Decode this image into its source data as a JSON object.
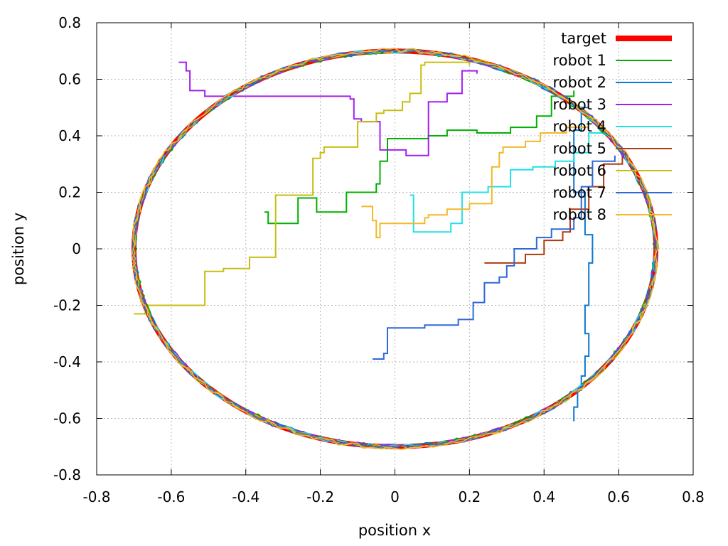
{
  "chart_data": {
    "type": "line",
    "xlabel": "position x",
    "ylabel": "position y",
    "xlim": [
      -0.8,
      0.8
    ],
    "ylim": [
      -0.8,
      0.8
    ],
    "xticks": [
      -0.8,
      -0.6,
      -0.4,
      -0.2,
      0,
      0.2,
      0.4,
      0.6,
      0.8
    ],
    "yticks": [
      -0.8,
      -0.6,
      -0.4,
      -0.2,
      0,
      0.2,
      0.4,
      0.6,
      0.8
    ],
    "xtick_labels": [
      "-0.8",
      "-0.6",
      "-0.4",
      "-0.2",
      "0",
      "0.2",
      "0.4",
      "0.6",
      "0.8"
    ],
    "ytick_labels": [
      "-0.8",
      "-0.6",
      "-0.4",
      "-0.2",
      "0",
      "0.2",
      "0.4",
      "0.6",
      "0.8"
    ],
    "grid": true,
    "legend_position": "top-right",
    "series": [
      {
        "name": "target",
        "color": "#ff0000",
        "kind": "circle",
        "center": [
          0,
          0
        ],
        "radius": 0.7
      },
      {
        "name": "robot 1",
        "color": "#00b000",
        "points": [
          [
            -0.35,
            0.13
          ],
          [
            -0.34,
            0.13
          ],
          [
            -0.34,
            0.09
          ],
          [
            -0.26,
            0.09
          ],
          [
            -0.26,
            0.18
          ],
          [
            -0.21,
            0.18
          ],
          [
            -0.21,
            0.13
          ],
          [
            -0.13,
            0.13
          ],
          [
            -0.13,
            0.2
          ],
          [
            -0.05,
            0.2
          ],
          [
            -0.05,
            0.23
          ],
          [
            -0.04,
            0.23
          ],
          [
            -0.04,
            0.31
          ],
          [
            -0.02,
            0.31
          ],
          [
            -0.02,
            0.39
          ],
          [
            0.09,
            0.39
          ],
          [
            0.09,
            0.4
          ],
          [
            0.14,
            0.4
          ],
          [
            0.14,
            0.42
          ],
          [
            0.22,
            0.42
          ],
          [
            0.22,
            0.41
          ],
          [
            0.31,
            0.41
          ],
          [
            0.31,
            0.43
          ],
          [
            0.38,
            0.43
          ],
          [
            0.38,
            0.47
          ],
          [
            0.42,
            0.47
          ],
          [
            0.42,
            0.54
          ],
          [
            0.48,
            0.54
          ],
          [
            0.48,
            0.56
          ]
        ]
      },
      {
        "name": "robot 2",
        "color": "#0a78d2",
        "points": [
          [
            0.52,
            0.5
          ],
          [
            0.5,
            0.5
          ],
          [
            0.5,
            0.42
          ],
          [
            0.48,
            0.42
          ],
          [
            0.48,
            0.2
          ],
          [
            0.51,
            0.2
          ],
          [
            0.51,
            0.05
          ],
          [
            0.53,
            0.05
          ],
          [
            0.53,
            -0.05
          ],
          [
            0.52,
            -0.05
          ],
          [
            0.52,
            -0.2
          ],
          [
            0.51,
            -0.2
          ],
          [
            0.51,
            -0.3
          ],
          [
            0.52,
            -0.3
          ],
          [
            0.52,
            -0.38
          ],
          [
            0.51,
            -0.38
          ],
          [
            0.51,
            -0.45
          ],
          [
            0.5,
            -0.45
          ],
          [
            0.5,
            -0.5
          ],
          [
            0.49,
            -0.5
          ],
          [
            0.49,
            -0.56
          ],
          [
            0.48,
            -0.56
          ],
          [
            0.48,
            -0.61
          ]
        ]
      },
      {
        "name": "robot 3",
        "color": "#a020f0",
        "points": [
          [
            -0.58,
            0.66
          ],
          [
            -0.56,
            0.66
          ],
          [
            -0.56,
            0.63
          ],
          [
            -0.55,
            0.63
          ],
          [
            -0.55,
            0.56
          ],
          [
            -0.51,
            0.56
          ],
          [
            -0.51,
            0.54
          ],
          [
            -0.12,
            0.54
          ],
          [
            -0.12,
            0.53
          ],
          [
            -0.11,
            0.53
          ],
          [
            -0.11,
            0.46
          ],
          [
            -0.09,
            0.46
          ],
          [
            -0.09,
            0.45
          ],
          [
            -0.04,
            0.45
          ],
          [
            -0.04,
            0.35
          ],
          [
            0.03,
            0.35
          ],
          [
            0.03,
            0.33
          ],
          [
            0.09,
            0.33
          ],
          [
            0.09,
            0.52
          ],
          [
            0.14,
            0.52
          ],
          [
            0.14,
            0.55
          ],
          [
            0.18,
            0.55
          ],
          [
            0.18,
            0.63
          ],
          [
            0.22,
            0.63
          ],
          [
            0.22,
            0.62
          ]
        ]
      },
      {
        "name": "robot 4",
        "color": "#20e0e8",
        "points": [
          [
            0.04,
            0.19
          ],
          [
            0.05,
            0.19
          ],
          [
            0.05,
            0.06
          ],
          [
            0.15,
            0.06
          ],
          [
            0.15,
            0.09
          ],
          [
            0.18,
            0.09
          ],
          [
            0.18,
            0.2
          ],
          [
            0.25,
            0.2
          ],
          [
            0.25,
            0.22
          ],
          [
            0.31,
            0.22
          ],
          [
            0.31,
            0.28
          ],
          [
            0.37,
            0.28
          ],
          [
            0.37,
            0.29
          ],
          [
            0.43,
            0.29
          ],
          [
            0.43,
            0.31
          ],
          [
            0.48,
            0.31
          ],
          [
            0.48,
            0.34
          ],
          [
            0.52,
            0.34
          ],
          [
            0.52,
            0.41
          ],
          [
            0.56,
            0.41
          ],
          [
            0.56,
            0.43
          ]
        ]
      },
      {
        "name": "robot 5",
        "color": "#b03a10",
        "points": [
          [
            0.24,
            -0.05
          ],
          [
            0.35,
            -0.05
          ],
          [
            0.35,
            -0.02
          ],
          [
            0.4,
            -0.02
          ],
          [
            0.4,
            0.03
          ],
          [
            0.45,
            0.03
          ],
          [
            0.45,
            0.06
          ],
          [
            0.47,
            0.06
          ],
          [
            0.47,
            0.14
          ],
          [
            0.52,
            0.14
          ],
          [
            0.52,
            0.22
          ],
          [
            0.56,
            0.22
          ],
          [
            0.56,
            0.3
          ],
          [
            0.61,
            0.3
          ],
          [
            0.61,
            0.33
          ]
        ]
      },
      {
        "name": "robot 6",
        "color": "#c8be10",
        "points": [
          [
            -0.7,
            -0.23
          ],
          [
            -0.67,
            -0.23
          ],
          [
            -0.67,
            -0.2
          ],
          [
            -0.51,
            -0.2
          ],
          [
            -0.51,
            -0.08
          ],
          [
            -0.46,
            -0.08
          ],
          [
            -0.46,
            -0.07
          ],
          [
            -0.39,
            -0.07
          ],
          [
            -0.39,
            -0.03
          ],
          [
            -0.32,
            -0.03
          ],
          [
            -0.32,
            0.19
          ],
          [
            -0.22,
            0.19
          ],
          [
            -0.22,
            0.32
          ],
          [
            -0.2,
            0.32
          ],
          [
            -0.2,
            0.34
          ],
          [
            -0.19,
            0.34
          ],
          [
            -0.19,
            0.36
          ],
          [
            -0.1,
            0.36
          ],
          [
            -0.1,
            0.45
          ],
          [
            -0.05,
            0.45
          ],
          [
            -0.05,
            0.48
          ],
          [
            -0.03,
            0.48
          ],
          [
            -0.03,
            0.49
          ],
          [
            0.02,
            0.49
          ],
          [
            0.02,
            0.52
          ],
          [
            0.04,
            0.52
          ],
          [
            0.04,
            0.55
          ],
          [
            0.07,
            0.55
          ],
          [
            0.07,
            0.65
          ],
          [
            0.08,
            0.65
          ],
          [
            0.08,
            0.66
          ],
          [
            0.2,
            0.66
          ],
          [
            0.2,
            0.65
          ]
        ]
      },
      {
        "name": "robot 7",
        "color": "#2f68d8",
        "points": [
          [
            -0.06,
            -0.39
          ],
          [
            -0.03,
            -0.39
          ],
          [
            -0.03,
            -0.37
          ],
          [
            -0.02,
            -0.37
          ],
          [
            -0.02,
            -0.28
          ],
          [
            0.08,
            -0.28
          ],
          [
            0.08,
            -0.27
          ],
          [
            0.17,
            -0.27
          ],
          [
            0.17,
            -0.25
          ],
          [
            0.21,
            -0.25
          ],
          [
            0.21,
            -0.19
          ],
          [
            0.24,
            -0.19
          ],
          [
            0.24,
            -0.12
          ],
          [
            0.28,
            -0.12
          ],
          [
            0.28,
            -0.1
          ],
          [
            0.3,
            -0.1
          ],
          [
            0.3,
            -0.06
          ],
          [
            0.32,
            -0.06
          ],
          [
            0.32,
            0.0
          ],
          [
            0.38,
            0.0
          ],
          [
            0.38,
            0.04
          ],
          [
            0.42,
            0.04
          ],
          [
            0.42,
            0.07
          ],
          [
            0.48,
            0.07
          ],
          [
            0.48,
            0.11
          ],
          [
            0.5,
            0.11
          ],
          [
            0.5,
            0.22
          ],
          [
            0.53,
            0.22
          ],
          [
            0.53,
            0.31
          ],
          [
            0.59,
            0.31
          ],
          [
            0.59,
            0.33
          ]
        ]
      },
      {
        "name": "robot 8",
        "color": "#f5b828",
        "points": [
          [
            -0.09,
            0.15
          ],
          [
            -0.06,
            0.15
          ],
          [
            -0.06,
            0.1
          ],
          [
            -0.05,
            0.1
          ],
          [
            -0.05,
            0.04
          ],
          [
            -0.04,
            0.04
          ],
          [
            -0.04,
            0.09
          ],
          [
            0.08,
            0.09
          ],
          [
            0.08,
            0.11
          ],
          [
            0.09,
            0.11
          ],
          [
            0.09,
            0.12
          ],
          [
            0.14,
            0.12
          ],
          [
            0.14,
            0.14
          ],
          [
            0.2,
            0.14
          ],
          [
            0.2,
            0.16
          ],
          [
            0.26,
            0.16
          ],
          [
            0.26,
            0.29
          ],
          [
            0.28,
            0.29
          ],
          [
            0.28,
            0.34
          ],
          [
            0.29,
            0.34
          ],
          [
            0.29,
            0.36
          ],
          [
            0.35,
            0.36
          ],
          [
            0.35,
            0.38
          ],
          [
            0.39,
            0.38
          ],
          [
            0.39,
            0.41
          ],
          [
            0.46,
            0.41
          ],
          [
            0.46,
            0.43
          ],
          [
            0.52,
            0.43
          ]
        ]
      }
    ]
  }
}
